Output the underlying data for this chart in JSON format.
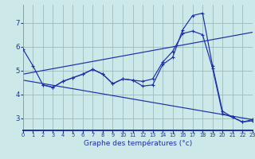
{
  "xlabel": "Graphe des températures (°c)",
  "bg_color": "#cce8e8",
  "line_color": "#1a2faa",
  "grid_color": "#99bbbb",
  "xlim": [
    0,
    23
  ],
  "ylim": [
    2.5,
    7.75
  ],
  "xticks": [
    0,
    1,
    2,
    3,
    4,
    5,
    6,
    7,
    8,
    9,
    10,
    11,
    12,
    13,
    14,
    15,
    16,
    17,
    18,
    19,
    20,
    21,
    22,
    23
  ],
  "yticks": [
    3,
    4,
    5,
    6,
    7
  ],
  "line1": {
    "x": [
      0,
      1,
      2,
      3,
      4,
      5,
      6,
      7,
      8,
      9,
      10,
      11,
      12,
      13,
      14,
      15,
      16,
      17,
      18,
      19,
      20,
      21,
      22,
      23
    ],
    "y": [
      5.9,
      5.2,
      4.4,
      4.3,
      4.55,
      4.7,
      4.85,
      5.05,
      4.85,
      4.45,
      4.65,
      4.6,
      4.35,
      4.4,
      5.25,
      5.55,
      6.7,
      7.3,
      7.4,
      5.2,
      3.3,
      3.05,
      2.85,
      2.95
    ]
  },
  "line2": {
    "x": [
      2,
      3,
      4,
      5,
      6,
      7,
      8,
      9,
      10,
      11,
      12,
      13,
      14,
      15,
      16,
      17,
      18,
      19,
      20,
      21,
      22,
      23
    ],
    "y": [
      4.4,
      4.3,
      4.55,
      4.7,
      4.85,
      5.05,
      4.85,
      4.45,
      4.65,
      4.6,
      4.55,
      4.65,
      5.35,
      5.8,
      6.55,
      6.65,
      6.5,
      5.1,
      3.2,
      3.05,
      2.85,
      2.9
    ]
  },
  "line3_x": [
    0,
    23
  ],
  "line3_y": [
    4.6,
    2.95
  ],
  "line4_x": [
    0,
    23
  ],
  "line4_y": [
    4.85,
    6.6
  ]
}
